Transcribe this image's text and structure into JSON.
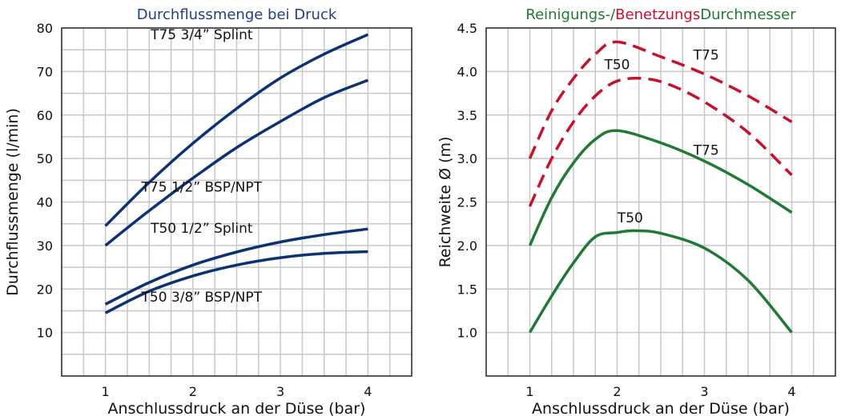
{
  "chart_data": [
    {
      "type": "line",
      "title": "Durchflussmenge bei Druck",
      "title_color": "#1f3f8a",
      "xlabel": "Anschlussdruck an der Düse (bar)",
      "ylabel": "Durchflussmenge (l/min)",
      "xlim": [
        0.5,
        4.5
      ],
      "ylim": [
        0,
        80
      ],
      "xticks": [
        "1",
        "2",
        "3",
        "4"
      ],
      "yticks": [
        "10",
        "20",
        "30",
        "40",
        "50",
        "60",
        "70",
        "80"
      ],
      "grid": true,
      "line_color": "#0b3275",
      "series": [
        {
          "name": "T75 3/4” Splint",
          "x": [
            1,
            1.5,
            2,
            2.5,
            3,
            3.5,
            4
          ],
          "values": [
            34.5,
            44.5,
            53.5,
            61.5,
            68.5,
            74,
            78.5
          ]
        },
        {
          "name": "T75 1/2” BSP/NPT",
          "x": [
            1,
            1.5,
            2,
            2.5,
            3,
            3.5,
            4
          ],
          "values": [
            30,
            38,
            45.5,
            52.5,
            58.5,
            64,
            68
          ]
        },
        {
          "name": "T50 1/2” Splint",
          "x": [
            1,
            1.5,
            2,
            2.5,
            3,
            3.5,
            4
          ],
          "values": [
            16.5,
            21.5,
            25.5,
            28.5,
            30.8,
            32.5,
            33.8
          ]
        },
        {
          "name": "T50 3/8” BSP/NPT",
          "x": [
            1,
            1.5,
            2,
            2.5,
            3,
            3.5,
            4
          ],
          "values": [
            14.5,
            19.5,
            23,
            25.5,
            27.2,
            28.2,
            28.6
          ]
        }
      ]
    },
    {
      "type": "line",
      "title_parts": [
        {
          "text": "Reinigungs-/",
          "color": "#1f7a33"
        },
        {
          "text": "Benetzungs",
          "color": "#c8102e"
        },
        {
          "text": "Durchmesser",
          "color": "#1f7a33"
        }
      ],
      "xlabel": "Anschlussdruck an der Düse (bar)",
      "ylabel": "Reichweite Ø (m)",
      "xlim": [
        0.5,
        4.5
      ],
      "ylim": [
        0.5,
        4.5
      ],
      "xticks": [
        "1",
        "2",
        "3",
        "4"
      ],
      "yticks": [
        "1.0",
        "1.5",
        "2.0",
        "2.5",
        "3.0",
        "3.5",
        "4.0",
        "4.5"
      ],
      "grid": true,
      "series": [
        {
          "name": "T75",
          "style": "dashed",
          "color": "#c8102e",
          "x": [
            1,
            1.25,
            1.5,
            1.75,
            2,
            2.5,
            3,
            3.5,
            4
          ],
          "values": [
            3.0,
            3.55,
            3.92,
            4.2,
            4.34,
            4.17,
            3.97,
            3.72,
            3.42
          ]
        },
        {
          "name": "T50",
          "style": "dashed",
          "color": "#c8102e",
          "x": [
            1,
            1.25,
            1.5,
            1.75,
            2,
            2.3,
            2.6,
            3,
            3.5,
            4
          ],
          "values": [
            2.45,
            3.0,
            3.42,
            3.72,
            3.89,
            3.92,
            3.85,
            3.65,
            3.3,
            2.81
          ]
        },
        {
          "name": "T75",
          "style": "solid",
          "color": "#1f7a33",
          "x": [
            1,
            1.25,
            1.5,
            1.75,
            2,
            2.5,
            3,
            3.5,
            4
          ],
          "values": [
            2.0,
            2.55,
            2.95,
            3.22,
            3.32,
            3.18,
            2.97,
            2.7,
            2.38
          ]
        },
        {
          "name": "T50",
          "style": "solid",
          "color": "#1f7a33",
          "x": [
            1,
            1.25,
            1.5,
            1.75,
            2,
            2.2,
            2.5,
            3,
            3.5,
            4
          ],
          "values": [
            1.0,
            1.42,
            1.8,
            2.1,
            2.15,
            2.17,
            2.14,
            1.97,
            1.6,
            1.0
          ]
        }
      ]
    }
  ],
  "left_annotations": [
    {
      "text": "T75 3/4” Splint",
      "x": 2.1,
      "y": 78.5
    },
    {
      "text": "T75 1/2” BSP/NPT",
      "x": 2.1,
      "y": 43.5
    },
    {
      "text": "T50 1/2” Splint",
      "x": 2.1,
      "y": 34
    },
    {
      "text": "T50 3/8” BSP/NPT",
      "x": 2.1,
      "y": 18.2
    }
  ],
  "right_annotations": [
    {
      "text": "T50",
      "x": 2.0,
      "y": 4.08
    },
    {
      "text": "T75",
      "x": 3.02,
      "y": 4.19
    },
    {
      "text": "T75",
      "x": 3.02,
      "y": 3.1
    },
    {
      "text": "T50",
      "x": 2.15,
      "y": 2.32
    }
  ]
}
